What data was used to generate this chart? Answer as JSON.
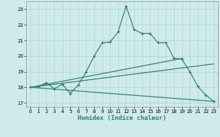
{
  "xlabel": "Humidex (Indice chaleur)",
  "ylabel": "",
  "background_color": "#ceeaec",
  "grid_color": "#afd4d8",
  "line_color": "#2e7d6e",
  "xlim": [
    -0.5,
    23.5
  ],
  "ylim": [
    16.75,
    23.5
  ],
  "xticks": [
    0,
    1,
    2,
    3,
    4,
    5,
    6,
    7,
    8,
    9,
    10,
    11,
    12,
    13,
    14,
    15,
    16,
    17,
    18,
    19,
    20,
    21,
    22,
    23
  ],
  "yticks": [
    17,
    18,
    19,
    20,
    21,
    22,
    23
  ],
  "line1_x": [
    0,
    1,
    2,
    3,
    4,
    5,
    6,
    7,
    8,
    9,
    10,
    11,
    12,
    13,
    14,
    15,
    16,
    17,
    18,
    19,
    20,
    21,
    22,
    23
  ],
  "line1_y": [
    18.0,
    18.05,
    18.3,
    17.9,
    18.2,
    17.6,
    18.15,
    19.0,
    20.0,
    20.85,
    20.9,
    21.55,
    23.2,
    21.7,
    21.45,
    21.45,
    20.85,
    20.85,
    19.85,
    19.8,
    19.0,
    18.05,
    17.5,
    17.1
  ],
  "line2_x": [
    0,
    23
  ],
  "line2_y": [
    18.0,
    17.1
  ],
  "line3_x": [
    0,
    23
  ],
  "line3_y": [
    18.0,
    19.5
  ],
  "line4_x": [
    0,
    19
  ],
  "line4_y": [
    18.0,
    19.85
  ],
  "figsize": [
    3.2,
    2.0
  ],
  "dpi": 100
}
